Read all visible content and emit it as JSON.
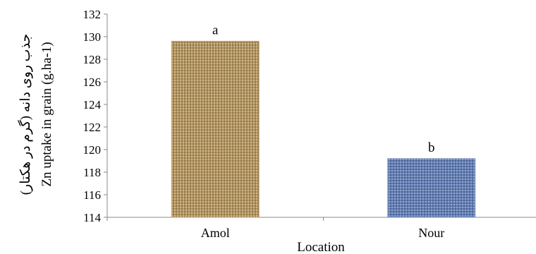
{
  "chart_data": {
    "type": "bar",
    "title": "",
    "xlabel": "Location",
    "ylabel": "Zn uptake in grain (g.ha-1)",
    "ylabel_fa": "جذب روی دانه (گرم در هکتار)",
    "categories": [
      "Amol",
      "Nour"
    ],
    "values": [
      129.6,
      119.2
    ],
    "significance_letters": [
      "a",
      "b"
    ],
    "ylim": [
      114,
      132
    ],
    "yticks": [
      114,
      116,
      118,
      120,
      122,
      124,
      126,
      128,
      130,
      132
    ],
    "grid": false,
    "legend": "none",
    "colors": [
      "#b89a63",
      "#5e79b0"
    ]
  }
}
